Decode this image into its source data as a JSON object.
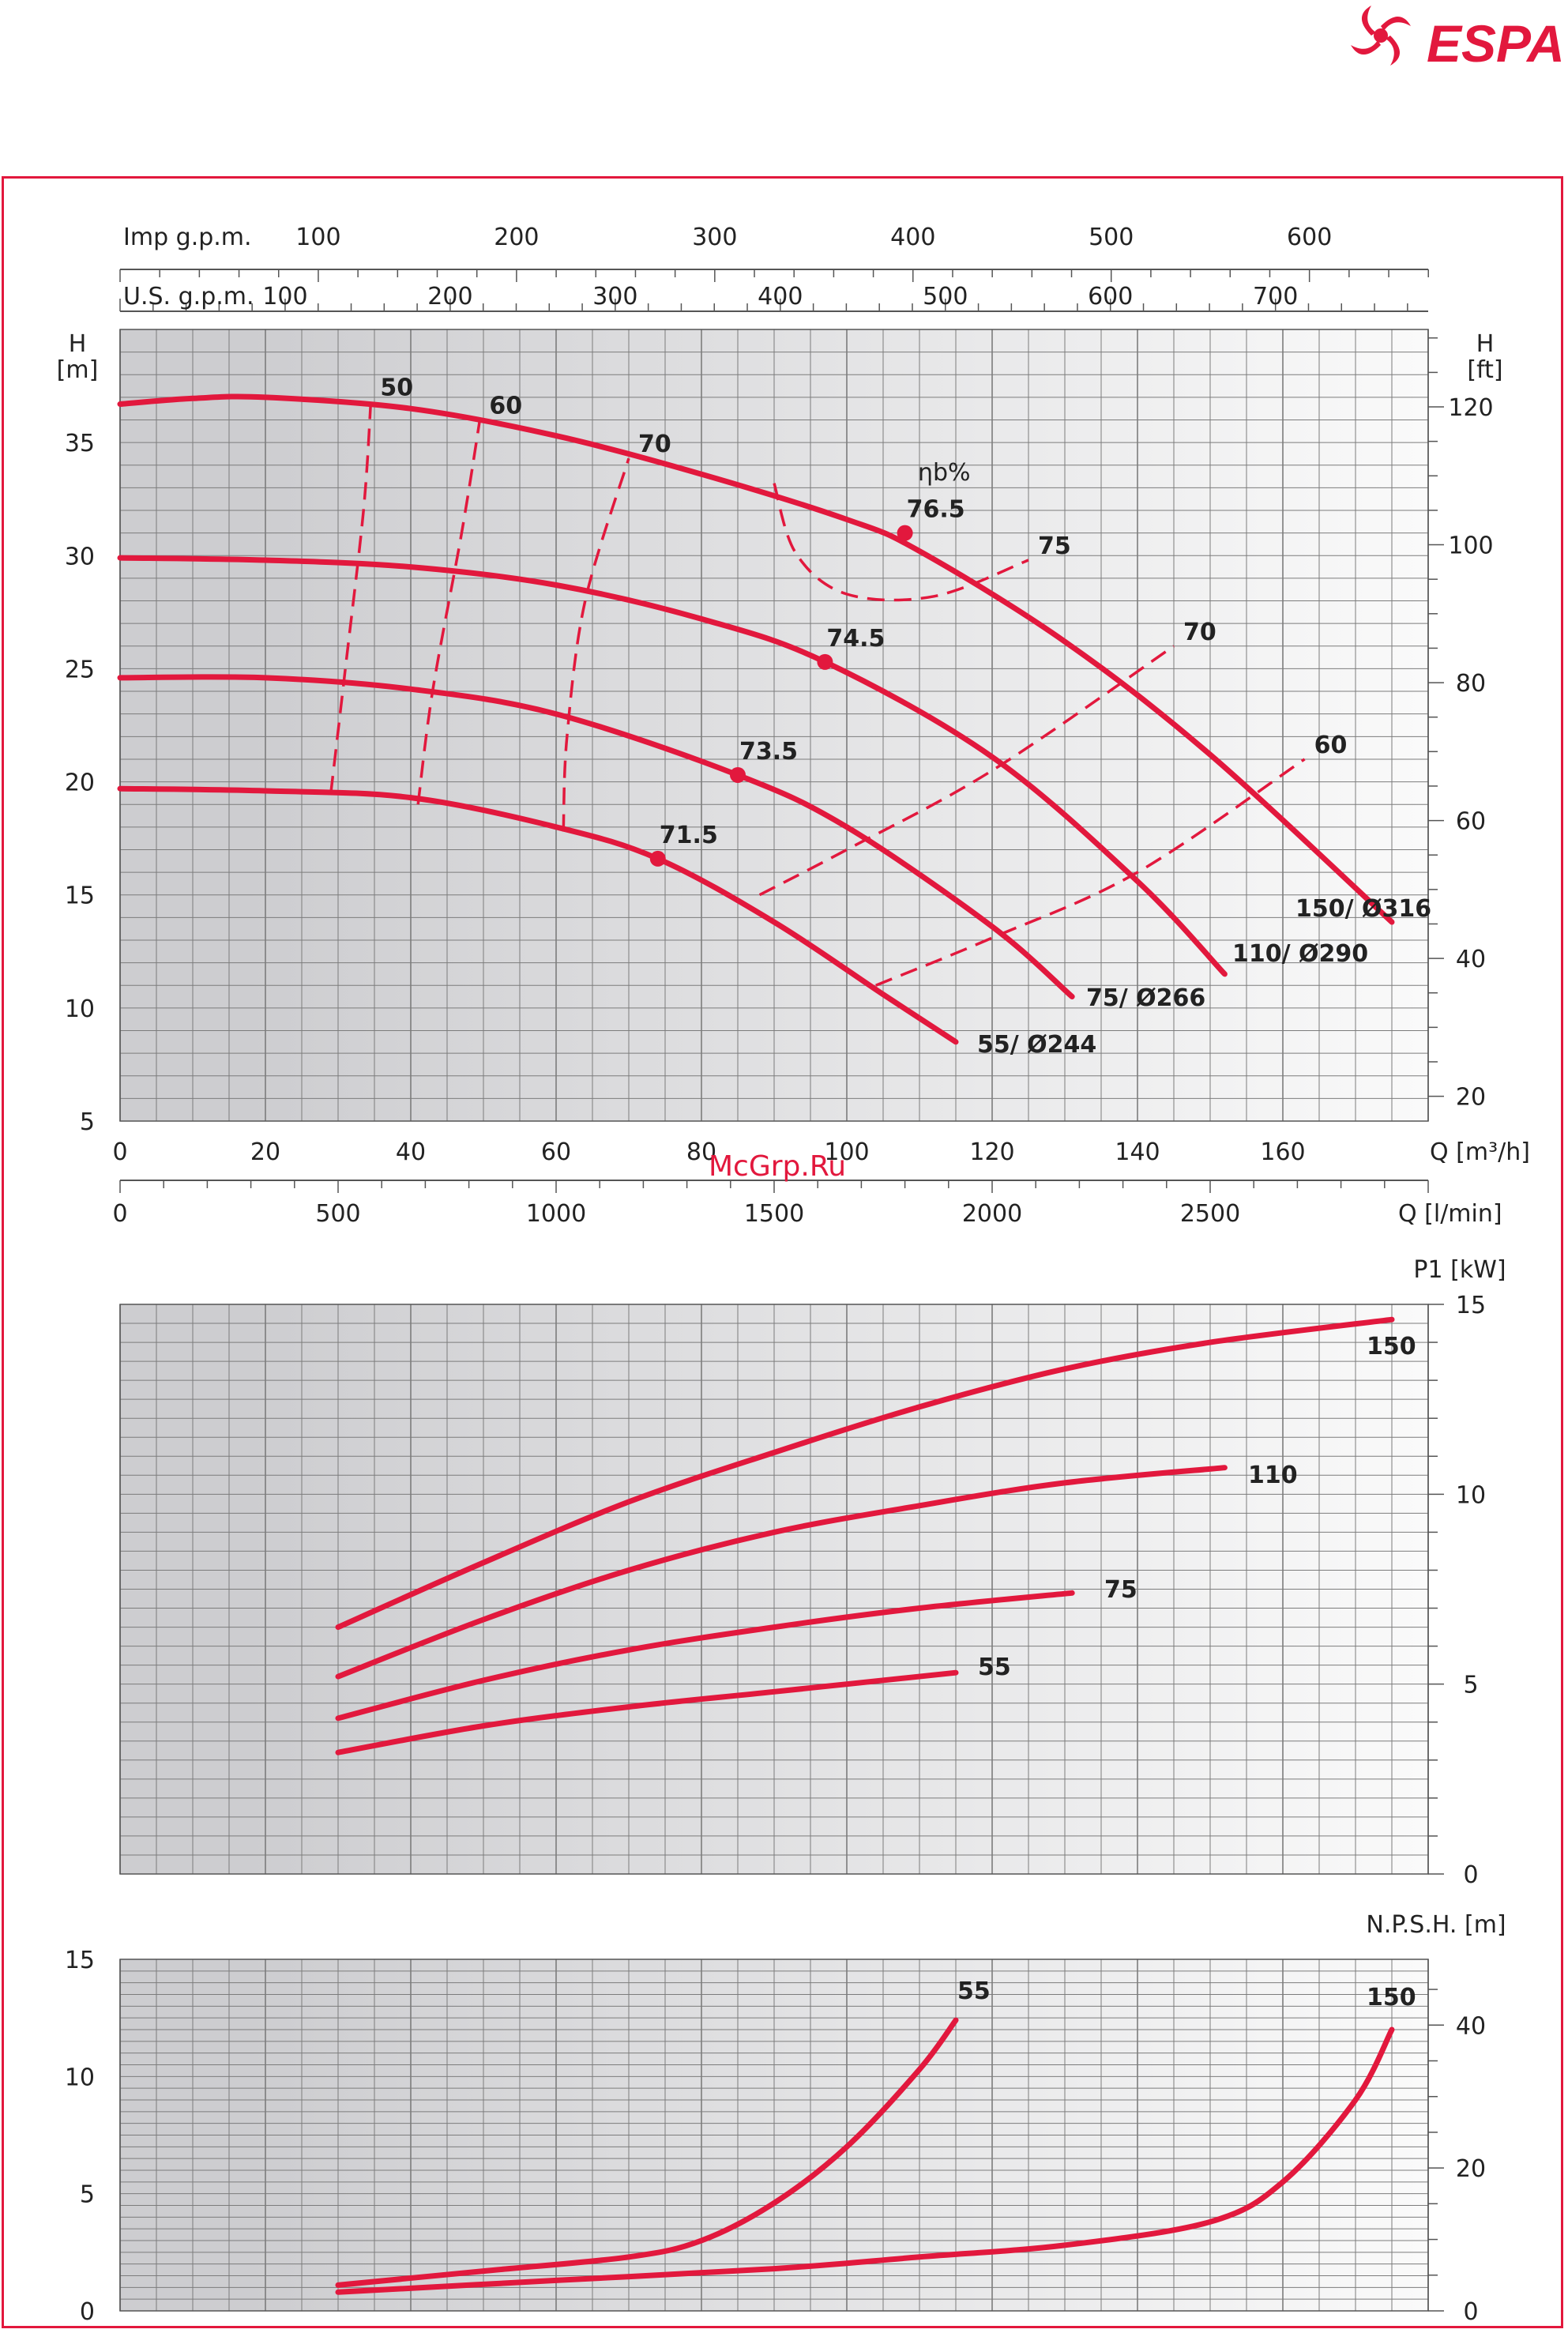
{
  "brand": {
    "name": "ESPA",
    "color": "#e2183d"
  },
  "watermark": "McGrp.Ru",
  "colors": {
    "curve": "#e2183d",
    "grid": "#7c7c7c",
    "axis": "#555555"
  },
  "chart_data": [
    {
      "type": "line",
      "id": "head",
      "xlabel": "Q [m³/h]",
      "ylabel": "H [m]",
      "ylabel_right": "H [ft]",
      "xlim": [
        0,
        180
      ],
      "ylim": [
        5,
        40
      ],
      "x_ticks": [
        0,
        20,
        40,
        60,
        80,
        100,
        120,
        140,
        160
      ],
      "y_ticks": [
        5,
        10,
        15,
        20,
        25,
        30,
        35
      ],
      "ft_ticks": [
        20,
        40,
        60,
        80,
        100,
        120
      ],
      "lmin_label": "Q [l/min]",
      "lmin_ticks": [
        0,
        500,
        1000,
        1500,
        2000,
        2500
      ],
      "us_gpm_label": "U.S. g.p.m.",
      "us_gpm_ticks": [
        100,
        200,
        300,
        400,
        500,
        600,
        700
      ],
      "imp_gpm_label": "Imp g.p.m.",
      "imp_gpm_ticks": [
        100,
        200,
        300,
        400,
        500,
        600
      ],
      "efficiency_label": "ηb%",
      "series": [
        {
          "name": "150/ Ø316",
          "x": [
            0,
            10,
            20,
            40,
            60,
            80,
            100,
            110,
            130,
            150,
            175
          ],
          "y": [
            36.7,
            36.95,
            37.0,
            36.5,
            35.3,
            33.6,
            31.6,
            30.2,
            26.2,
            21.2,
            13.8
          ]
        },
        {
          "name": "110/ Ø290",
          "x": [
            0,
            20,
            40,
            60,
            80,
            97,
            120,
            140,
            152
          ],
          "y": [
            29.9,
            29.8,
            29.5,
            28.7,
            27.2,
            25.3,
            21.1,
            15.6,
            11.5
          ]
        },
        {
          "name": "75/ Ø266",
          "x": [
            0,
            20,
            40,
            60,
            85,
            100,
            120,
            131
          ],
          "y": [
            24.6,
            24.6,
            24.1,
            23.0,
            20.3,
            18.0,
            13.6,
            10.5
          ]
        },
        {
          "name": "55/ Ø244",
          "x": [
            0,
            20,
            40,
            60,
            74,
            90,
            105,
            115
          ],
          "y": [
            19.7,
            19.6,
            19.3,
            18.0,
            16.6,
            13.8,
            10.6,
            8.5
          ]
        }
      ],
      "bep_points": [
        {
          "label": "76.5",
          "x": 108,
          "y": 31.0
        },
        {
          "label": "74.5",
          "x": 97,
          "y": 25.3
        },
        {
          "label": "73.5",
          "x": 85,
          "y": 20.3
        },
        {
          "label": "71.5",
          "x": 74,
          "y": 16.6
        }
      ],
      "iso_efficiency": [
        {
          "label": "50",
          "x": [
            29,
            31,
            33.5,
            34.5
          ],
          "y": [
            19.5,
            25,
            32,
            36.8
          ]
        },
        {
          "label": "60",
          "x": [
            41,
            43,
            47,
            49.5
          ],
          "y": [
            19.0,
            24,
            31,
            36.0
          ]
        },
        {
          "label": "70",
          "x": [
            61,
            61.5,
            64,
            70
          ],
          "y": [
            17.8,
            22,
            28,
            34.3
          ]
        },
        {
          "label": "75",
          "x": [
            90,
            93,
            100,
            112,
            125
          ],
          "y": [
            33.2,
            30.1,
            28.3,
            28.2,
            29.8
          ]
        },
        {
          "label": "70",
          "x": [
            88,
            100,
            120,
            145
          ],
          "y": [
            15.0,
            17.0,
            20.5,
            26.0
          ]
        },
        {
          "label": "60",
          "x": [
            104,
            120,
            140,
            163
          ],
          "y": [
            11.0,
            13.1,
            16.0,
            21.0
          ]
        }
      ]
    },
    {
      "type": "line",
      "id": "power",
      "ylabel": "P1 [kW]",
      "xlim": [
        0,
        180
      ],
      "ylim": [
        0,
        15
      ],
      "y_ticks": [
        0,
        5,
        10,
        15
      ],
      "series": [
        {
          "name": "150",
          "x": [
            30,
            50,
            70,
            90,
            110,
            130,
            150,
            175
          ],
          "y": [
            6.5,
            8.2,
            9.8,
            11.1,
            12.3,
            13.3,
            14.0,
            14.6
          ]
        },
        {
          "name": "110",
          "x": [
            30,
            50,
            70,
            90,
            110,
            130,
            152
          ],
          "y": [
            5.2,
            6.7,
            8.0,
            9.0,
            9.7,
            10.3,
            10.7
          ]
        },
        {
          "name": "75",
          "x": [
            30,
            50,
            70,
            90,
            110,
            131
          ],
          "y": [
            4.1,
            5.1,
            5.9,
            6.5,
            7.0,
            7.4
          ]
        },
        {
          "name": "55",
          "x": [
            30,
            50,
            70,
            90,
            115
          ],
          "y": [
            3.2,
            3.9,
            4.4,
            4.8,
            5.3
          ]
        }
      ]
    },
    {
      "type": "line",
      "id": "npsh",
      "ylabel": "N.P.S.H. [m]",
      "xlim": [
        0,
        180
      ],
      "ylim": [
        0,
        15
      ],
      "y_ticks": [
        0,
        5,
        10,
        15
      ],
      "ft_ticks": [
        0,
        20,
        40
      ],
      "series": [
        {
          "name": "55",
          "x": [
            30,
            50,
            70,
            80,
            90,
            100,
            110,
            115
          ],
          "y": [
            1.1,
            1.7,
            2.3,
            3.0,
            4.6,
            7.0,
            10.3,
            12.4
          ]
        },
        {
          "name": "150",
          "x": [
            30,
            60,
            90,
            110,
            130,
            150,
            160,
            170,
            175
          ],
          "y": [
            0.8,
            1.3,
            1.8,
            2.3,
            2.8,
            3.8,
            5.5,
            9.0,
            12.0
          ]
        }
      ]
    }
  ]
}
